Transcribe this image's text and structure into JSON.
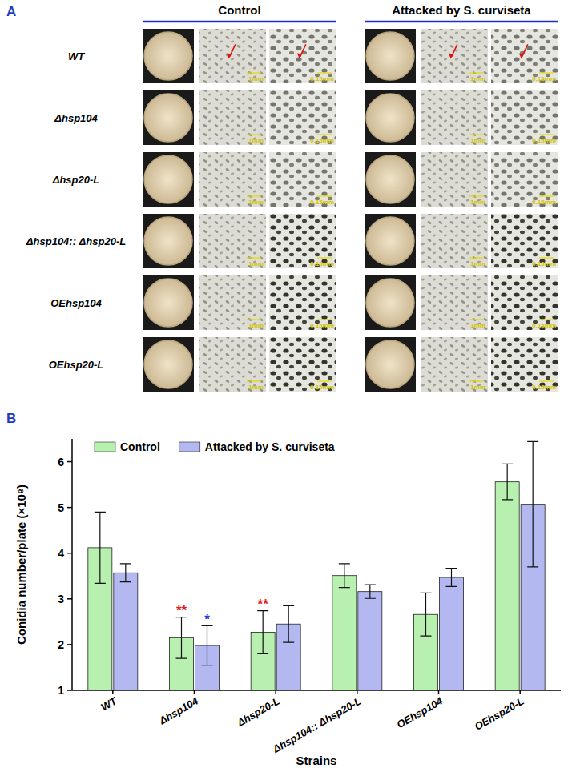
{
  "panel_a": {
    "label": "A",
    "columns": [
      "Control",
      "Attacked by S. curviseta"
    ],
    "rows": [
      "WT",
      "Δhsp104",
      "Δhsp20-L",
      "Δhsp104:: Δhsp20-L",
      "OEhsp104",
      "OEhsp20-L"
    ],
    "scale_bars": [
      "1mm",
      "0.15mm"
    ]
  },
  "chart_data": {
    "type": "bar",
    "panel_label": "B",
    "x_label": "Strains",
    "y_label": "Conidia number/plate (×10⁸)",
    "categories": [
      "WT",
      "Δhsp104",
      "Δhsp20-L",
      "Δhsp104:: Δhsp20-L",
      "OEhsp104",
      "OEhsp20-L"
    ],
    "series": [
      {
        "name": "Control",
        "color": "#b8f0b0",
        "values": [
          4.12,
          2.15,
          2.27,
          3.51,
          2.66,
          5.56
        ],
        "errors": [
          0.78,
          0.45,
          0.47,
          0.26,
          0.47,
          0.39
        ]
      },
      {
        "name": "Attacked by S. curviseta",
        "color": "#b4b8f0",
        "values": [
          3.57,
          1.98,
          2.45,
          3.16,
          3.47,
          5.07
        ],
        "errors": [
          0.2,
          0.43,
          0.4,
          0.15,
          0.2,
          1.37
        ]
      }
    ],
    "ylim": [
      1,
      6.5
    ],
    "yticks": [
      1,
      2,
      3,
      4,
      5,
      6
    ],
    "grid": false,
    "legend": "top-left",
    "annotations": [
      {
        "text": "**",
        "category": "Δhsp104",
        "series": "Control",
        "color": "#e02020"
      },
      {
        "text": "*",
        "category": "Δhsp104",
        "series": "Attacked by S. curviseta",
        "color": "#2040e0"
      },
      {
        "text": "**",
        "category": "Δhsp20-L",
        "series": "Control",
        "color": "#e02020"
      }
    ]
  }
}
